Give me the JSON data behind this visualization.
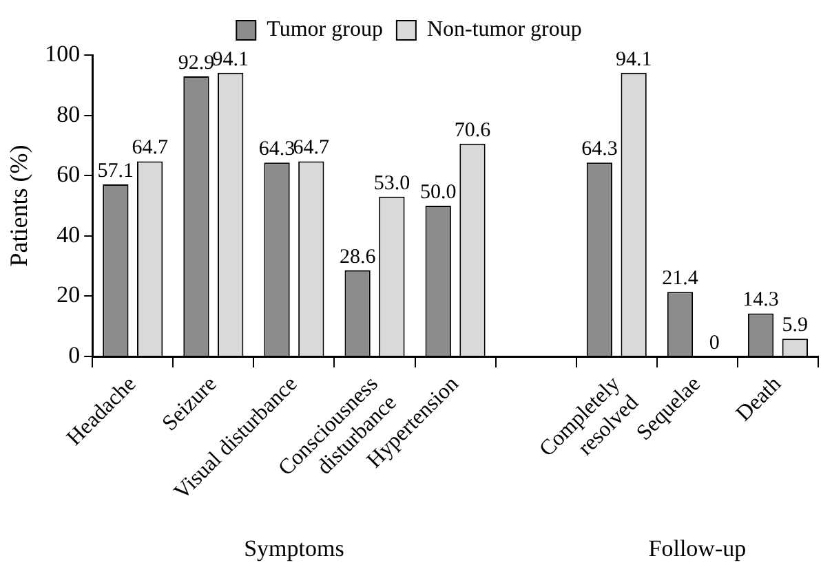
{
  "chart_data": {
    "type": "bar",
    "ylabel": "Patients (%)",
    "categories": [
      "Headache",
      "Seizure",
      "Visual disturbance",
      "Consciousness\ndisturbance",
      "Hypertension",
      null,
      "Completely\nresolved",
      "Sequelae",
      "Death"
    ],
    "series": [
      {
        "name": "Tumor group",
        "color": "#8c8c8c",
        "values": [
          57.1,
          92.9,
          64.3,
          28.6,
          50.0,
          null,
          64.3,
          21.4,
          14.3
        ],
        "value_labels": [
          "57.1",
          "92.9",
          "64.3",
          "28.6",
          "50.0",
          null,
          "64.3",
          "21.4",
          "14.3"
        ]
      },
      {
        "name": "Non-tumor group",
        "color": "#d9d9d9",
        "values": [
          64.7,
          94.1,
          64.7,
          53.0,
          70.6,
          null,
          94.1,
          0,
          5.9
        ],
        "value_labels": [
          "64.7",
          "94.1",
          "64.7",
          "53.0",
          "70.6",
          null,
          "94.1",
          "0",
          "5.9"
        ]
      }
    ],
    "ylim": [
      0,
      100
    ],
    "yticks": [
      0,
      20,
      40,
      60,
      80,
      100
    ],
    "grid": false,
    "legend": "top",
    "annotations": [
      "Symptoms",
      "Follow-up"
    ]
  }
}
